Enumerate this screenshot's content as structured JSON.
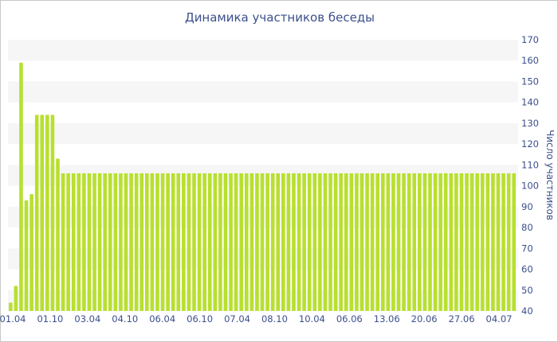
{
  "chart_data": {
    "type": "bar",
    "title": "Динамика участников беседы",
    "ylabel": "Число участников",
    "xlabel": "",
    "ylim": [
      40,
      170
    ],
    "yticks": [
      40,
      50,
      60,
      70,
      80,
      90,
      100,
      110,
      120,
      130,
      140,
      150,
      160,
      170
    ],
    "xtick_labels": [
      "01.04",
      "01.10",
      "03.04",
      "04.10",
      "06.04",
      "06.10",
      "07.04",
      "08.10",
      "10.04",
      "06.06",
      "13.06",
      "20.06",
      "27.06",
      "04.07"
    ],
    "grid": "alternating horizontal bands",
    "bar_color": "#b8e02e",
    "band_color": "#f6f6f6",
    "text_color": "#3c4f8c",
    "values": [
      44,
      52,
      159,
      93,
      96,
      134,
      134,
      134,
      134,
      113,
      106,
      106,
      106,
      106,
      106,
      106,
      106,
      106,
      106,
      106,
      106,
      106,
      106,
      106,
      106,
      106,
      106,
      106,
      106,
      106,
      106,
      106,
      106,
      106,
      106,
      106,
      106,
      106,
      106,
      106,
      106,
      106,
      106,
      106,
      106,
      106,
      106,
      106,
      106,
      106,
      106,
      106,
      106,
      106,
      106,
      106,
      106,
      106,
      106,
      106,
      106,
      106,
      106,
      106,
      106,
      106,
      106,
      106,
      106,
      106,
      106,
      106,
      106,
      106,
      106,
      106,
      106,
      106,
      106,
      106,
      106,
      106,
      106,
      106,
      106,
      106,
      106,
      106,
      106,
      106,
      106,
      106,
      106,
      106,
      106,
      106,
      106
    ]
  }
}
